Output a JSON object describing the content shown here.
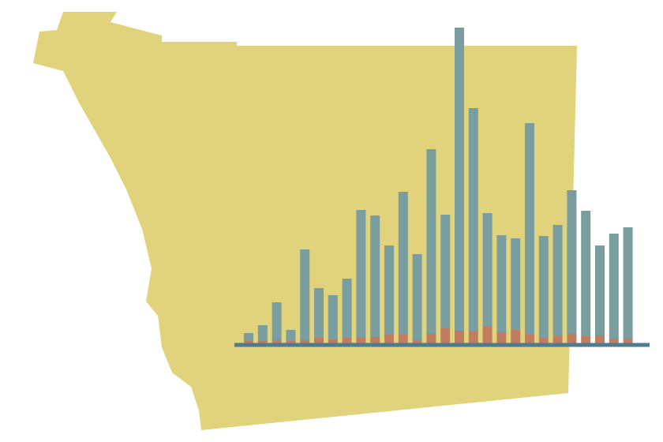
{
  "chart_data": {
    "type": "stacked-bar",
    "ylim": [
      0,
      400
    ],
    "series": [
      {
        "color": "#c17d5f",
        "values": [
          3,
          3,
          4,
          3,
          4,
          7,
          5,
          7,
          8,
          8,
          11,
          11,
          4,
          12,
          19,
          16,
          16,
          21,
          14,
          17,
          11,
          7,
          10,
          12,
          10,
          10,
          6,
          6
        ]
      },
      {
        "color": "#7a9e9f",
        "values": [
          10,
          20,
          48,
          14,
          115,
          63,
          56,
          75,
          161,
          154,
          113,
          181,
          109,
          234,
          144,
          384,
          282,
          144,
          123,
          116,
          268,
          129,
          140,
          182,
          158,
          114,
          133,
          141
        ]
      }
    ]
  }
}
